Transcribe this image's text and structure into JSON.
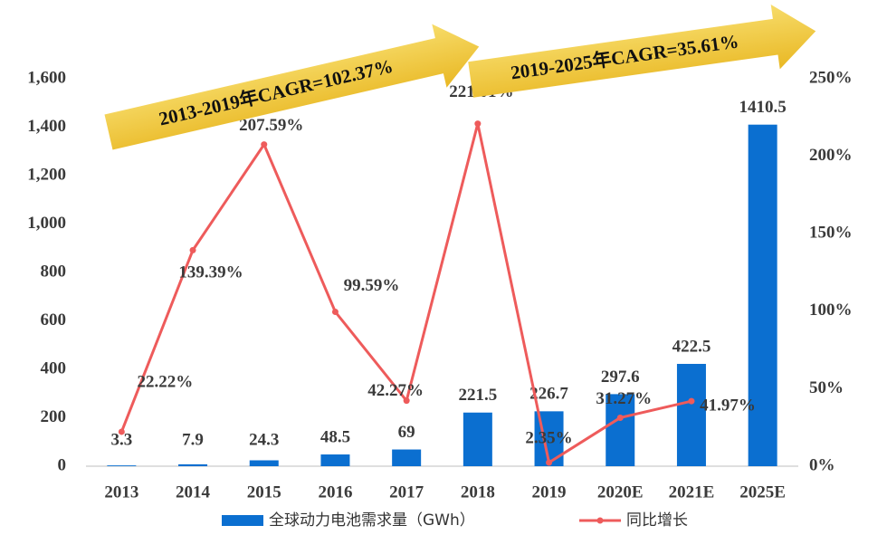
{
  "chart_data": {
    "type": "bar",
    "categories": [
      "2013",
      "2014",
      "2015",
      "2016",
      "2017",
      "2018",
      "2019",
      "2020E",
      "2021E",
      "2025E"
    ],
    "series": [
      {
        "name": "全球动力电池需求量（GWh）",
        "type": "bar",
        "color": "#0b6fd0",
        "values": [
          3.3,
          7.9,
          24.3,
          48.5,
          69,
          221.5,
          226.7,
          297.6,
          422.5,
          1410.5
        ]
      },
      {
        "name": "同比增长",
        "type": "line",
        "axis": "y2",
        "color": "#ee5b5b",
        "values": [
          22.22,
          139.39,
          207.59,
          99.59,
          42.27,
          221.01,
          2.35,
          31.27,
          41.97,
          null
        ],
        "value_labels": [
          "22.22%",
          "139.39%",
          "207.59%",
          "99.59%",
          "42.27%",
          "221.01%",
          "2.35%",
          "31.27%",
          "41.97%",
          null
        ]
      }
    ],
    "ylim": [
      0,
      1600
    ],
    "yticks": [
      0,
      200,
      400,
      600,
      800,
      {
        "value": 1000,
        "label": "1,000"
      },
      {
        "value": 1200,
        "label": "1,200"
      },
      {
        "value": 1400,
        "label": "1,400"
      },
      {
        "value": 1600,
        "label": "1,600"
      }
    ],
    "y2lim": [
      0,
      250
    ],
    "y2ticks": [
      {
        "value": 0,
        "label": "0%"
      },
      {
        "value": 50,
        "label": "50%"
      },
      {
        "value": 100,
        "label": "100%"
      },
      {
        "value": 150,
        "label": "150%"
      },
      {
        "value": 200,
        "label": "200%"
      },
      {
        "value": 250,
        "label": "250%"
      }
    ],
    "annotations": [
      "2013-2019年CAGR=102.37%",
      "2019-2025年CAGR=35.61%"
    ],
    "legend": "bottom"
  }
}
